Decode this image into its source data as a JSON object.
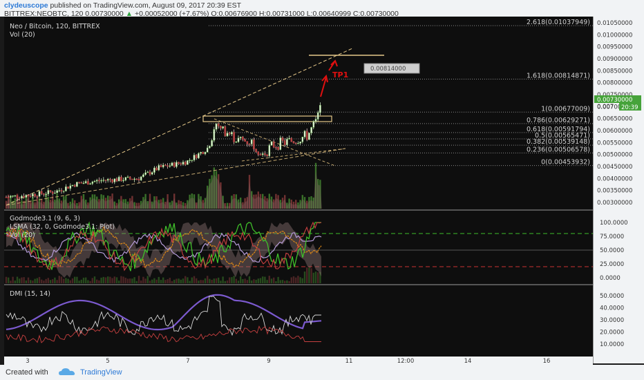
{
  "header": {
    "author": "clydeuscope",
    "published": "published on TradingView.com, August 09, 2017 20:39 EST",
    "symbol": "BITTREX:NEOBTC, 120",
    "last": "0.00730000",
    "change_arrow": "▲",
    "change": "+0.00052000 (+7.67%)",
    "ohlc": "O:0.00676900 H:0.00731000 L:0.00640999 C:0.00730000"
  },
  "main_pane": {
    "title": "Neo / Bitcoin, 120, BITTREX",
    "vol_label": "Vol (20)",
    "tp_label": "TP1",
    "tp_callout": "0.00814000",
    "fib_levels": [
      {
        "label": "2.618(0.01037949)",
        "price": 0.01037949
      },
      {
        "label": "1.618(0.00814871)",
        "price": 0.00814871
      },
      {
        "label": "1(0.00677009)",
        "price": 0.00677009
      },
      {
        "label": "0.786(0.00629271)",
        "price": 0.00629271
      },
      {
        "label": "0.618(0.00591794)",
        "price": 0.00591794
      },
      {
        "label": "0.5(0.00565471)",
        "price": 0.00565471
      },
      {
        "label": "0.382(0.00539148)",
        "price": 0.00539148
      },
      {
        "label": "0.236(0.00506578)",
        "price": 0.00506578
      },
      {
        "label": "0(0.00453932)",
        "price": 0.00453932
      }
    ]
  },
  "godmode_pane": {
    "lines": [
      "Godmode3.1 (9, 6, 3)",
      "LSMA (32, 0, Godmode3.1: Plot)",
      "Vol (20)"
    ]
  },
  "dmi_pane": {
    "title": "DMI (15, 14)"
  },
  "price_axis": {
    "ticks": [
      "0.01050000",
      "0.01000000",
      "0.00950000",
      "0.00900000",
      "0.00850000",
      "0.00800000",
      "0.00750000",
      "0.00700000",
      "0.00650000",
      "0.00600000",
      "0.00550000",
      "0.00500000",
      "0.00450000",
      "0.00400000",
      "0.00350000",
      "0.00300000"
    ],
    "current_price": "0.00730000",
    "prev_price_partial": "0.007",
    "time_badge": "20:39"
  },
  "godmode_axis": {
    "ticks": [
      "100.0000",
      "75.0000",
      "50.0000",
      "25.0000",
      "0.0000"
    ]
  },
  "dmi_axis": {
    "ticks": [
      "50.0000",
      "40.0000",
      "30.0000",
      "20.0000",
      "10.0000"
    ]
  },
  "time_axis": {
    "ticks": [
      "3",
      "5",
      "7",
      "9",
      "11",
      "12:00",
      "14",
      "16"
    ]
  },
  "footer": {
    "created_with": "Created with",
    "brand": "TradingView"
  },
  "colors": {
    "up": "#6cc04a",
    "down": "#c94b4b",
    "bg": "#0e0e0e",
    "last_price": "#46a33a",
    "tp_arrow": "#e01010",
    "fib": "#8a8a8a",
    "green_line": "#3fbf2a",
    "orange_line": "#e08a16",
    "lavender_line": "#b59bd8",
    "dmi_purple": "#7c5ad0"
  }
}
